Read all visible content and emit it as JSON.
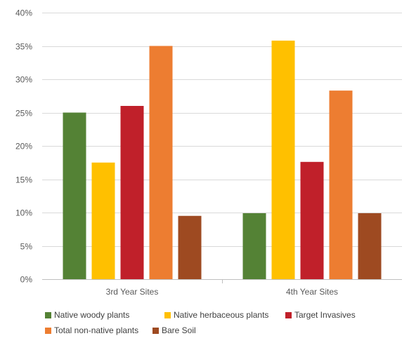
{
  "chart_data": {
    "type": "bar",
    "categories": [
      "3rd Year Sites",
      "4th Year Sites"
    ],
    "series": [
      {
        "name": "Native woody plants",
        "values": [
          25,
          9.9
        ],
        "color": "#548235"
      },
      {
        "name": "Native herbaceous plants",
        "values": [
          17.5,
          35.8
        ],
        "color": "#FFC000"
      },
      {
        "name": "Target Invasives",
        "values": [
          26,
          17.6
        ],
        "color": "#C0202A"
      },
      {
        "name": "Total non-native plants",
        "values": [
          35,
          28.3
        ],
        "color": "#ED7D31"
      },
      {
        "name": "Bare Soil",
        "values": [
          9.5,
          9.9
        ],
        "color": "#9E4A21"
      }
    ],
    "ylim": [
      0,
      40
    ],
    "yticks": [
      "0%",
      "5%",
      "10%",
      "15%",
      "20%",
      "25%",
      "30%",
      "35%",
      "40%"
    ],
    "grid": true,
    "legend_position": "bottom",
    "title": "",
    "xlabel": "",
    "ylabel": ""
  }
}
